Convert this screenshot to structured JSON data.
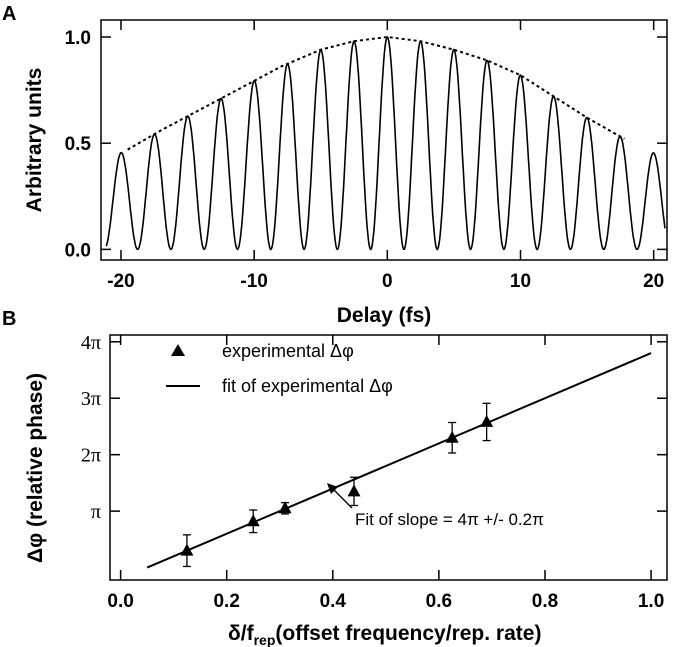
{
  "chart_data": [
    {
      "panel_label": "A",
      "type": "line",
      "xlabel": "Delay (fs)",
      "ylabel": "Arbitrary units",
      "xlim": [
        -21.5,
        21
      ],
      "ylim": [
        -0.05,
        1.08
      ],
      "x_ticks": [
        -20,
        -10,
        0,
        10,
        20
      ],
      "x_tick_labels": [
        "-20",
        "-10",
        "0",
        "10",
        "20"
      ],
      "y_ticks": [
        0.0,
        0.5,
        1.0
      ],
      "y_tick_labels": [
        "0.0",
        "0.5",
        "1.0"
      ],
      "grid": false,
      "fringe_period_fs": 2.5,
      "envelope": {
        "x": [
          -19.5,
          -17.0,
          -14.0,
          -11.0,
          -8.0,
          -5.0,
          -2.5,
          0,
          2.5,
          5.0,
          7.5,
          10.0,
          12.5,
          15.0,
          17.8
        ],
        "y": [
          0.47,
          0.56,
          0.66,
          0.76,
          0.86,
          0.94,
          0.98,
          1.0,
          0.98,
          0.94,
          0.89,
          0.82,
          0.72,
          0.62,
          0.52
        ]
      },
      "baseline": 0.0
    },
    {
      "panel_label": "B",
      "type": "scatter",
      "xlabel": "δ/f",
      "xlabel_subscript": "rep",
      "xlabel_suffix": "(offset frequency/rep. rate)",
      "ylabel": "Δφ (relative phase)",
      "xlim": [
        -0.02,
        1.03
      ],
      "ylim_over_pi": [
        -0.22,
        4.12
      ],
      "x_ticks": [
        0.0,
        0.2,
        0.4,
        0.6,
        0.8,
        1.0
      ],
      "x_tick_labels": [
        "0.0",
        "0.2",
        "0.4",
        "0.6",
        "0.8",
        "1.0"
      ],
      "y_ticks_over_pi": [
        1,
        2,
        3,
        4
      ],
      "y_tick_labels": [
        "π",
        "2π",
        "3π",
        "4π"
      ],
      "grid": false,
      "series": [
        {
          "name": "experimental Δφ",
          "marker": "triangle",
          "x": [
            0.125,
            0.25,
            0.31,
            0.44,
            0.625,
            0.69
          ],
          "y_over_pi": [
            0.3,
            0.82,
            1.05,
            1.35,
            2.3,
            2.58
          ],
          "err_over_pi": [
            0.28,
            0.2,
            0.1,
            0.25,
            0.27,
            0.33
          ]
        },
        {
          "name": "fit of experimental Δφ",
          "type": "line",
          "x": [
            0.05,
            1.0
          ],
          "y_over_pi": [
            0.0,
            3.8
          ]
        }
      ],
      "legend_placement": "top-left",
      "annotation": "Fit of slope = 4π +/- 0.2π"
    }
  ]
}
